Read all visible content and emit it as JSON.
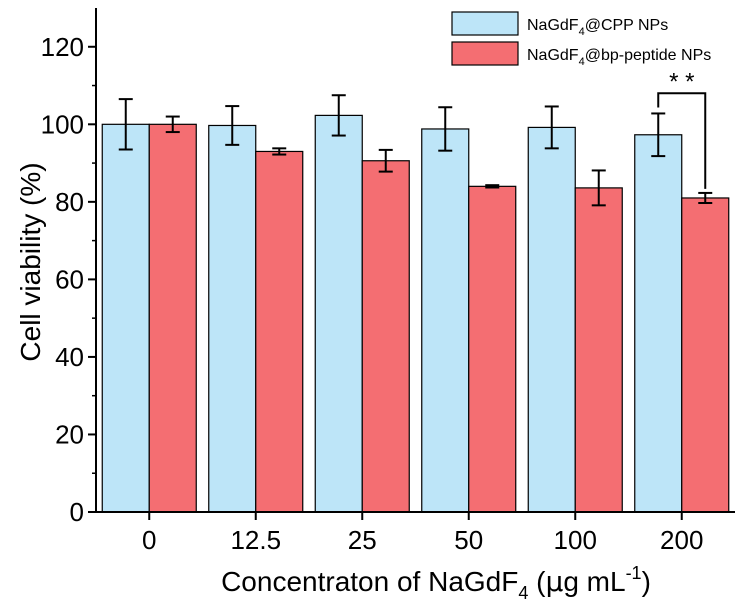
{
  "chart_data": {
    "type": "bar",
    "categories": [
      "0",
      "12.5",
      "25",
      "50",
      "100",
      "200"
    ],
    "series": [
      {
        "name_base": "NaGdF",
        "name_sub": "4",
        "name_rest": "@CPP NPs",
        "color": "#bde5f8",
        "values": [
          100.0,
          99.7,
          102.3,
          98.8,
          99.2,
          97.3
        ],
        "errors": [
          6.5,
          5.0,
          5.2,
          5.6,
          5.4,
          5.5
        ]
      },
      {
        "name_base": "NaGdF",
        "name_sub": "4",
        "name_rest": "@bp-peptide NPs",
        "color": "#f46e72",
        "values": [
          100.0,
          93.0,
          90.6,
          84.0,
          83.6,
          81.0
        ],
        "errors": [
          2.0,
          0.8,
          2.8,
          0.3,
          4.5,
          1.3
        ]
      }
    ],
    "ylim": [
      0,
      130
    ],
    "yticks": [
      0,
      20,
      40,
      60,
      80,
      100,
      120
    ],
    "ylabel": "Cell viability (%)",
    "xlabel_parts": {
      "main": "Concentraton of NaGdF",
      "sub": "4",
      "unit_open": " (",
      "mu": "μ",
      "unit_mid": "g mL",
      "sup": "-1",
      "unit_close": ")"
    },
    "annotation": {
      "text": "* *",
      "category_index": 5,
      "value": 108
    },
    "legend_position": "top-right",
    "grid": false
  }
}
